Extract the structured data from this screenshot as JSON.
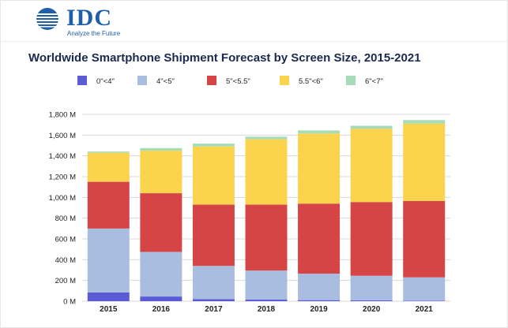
{
  "brand": {
    "logo_text": "IDC",
    "tagline": "Analyze the Future",
    "color": "#1f5ea8"
  },
  "chart_data": {
    "type": "bar",
    "stacked": true,
    "title": "Worldwide Smartphone Shipment Forecast by Screen Size, 2015-2021",
    "xlabel": "",
    "ylabel": "",
    "categories": [
      "2015",
      "2016",
      "2017",
      "2018",
      "2019",
      "2020",
      "2021"
    ],
    "ylim": [
      0,
      1800
    ],
    "y_ticks": [
      0,
      200,
      400,
      600,
      800,
      1000,
      1200,
      1400,
      1600,
      1800
    ],
    "y_tick_labels": [
      "0 M",
      "200 M",
      "400 M",
      "600 M",
      "800 M",
      "1,000 M",
      "1,200 M",
      "1,400 M",
      "1,600 M",
      "1,800 M"
    ],
    "grid": true,
    "legend_position": "top",
    "series": [
      {
        "name": "0\"<4\"",
        "color": "#5b5bd6",
        "values": [
          85,
          45,
          20,
          15,
          10,
          8,
          5
        ]
      },
      {
        "name": "4\"<5\"",
        "color": "#a9bde0",
        "values": [
          615,
          430,
          320,
          280,
          255,
          237,
          225
        ]
      },
      {
        "name": "5\"<5.5\"",
        "color": "#d64545",
        "values": [
          450,
          565,
          590,
          635,
          675,
          710,
          735
        ]
      },
      {
        "name": "5.5\"<6\"",
        "color": "#fcd34d",
        "values": [
          280,
          410,
          560,
          630,
          675,
          705,
          745
        ]
      },
      {
        "name": "6\"<7\"",
        "color": "#a8dcb8",
        "values": [
          12,
          25,
          28,
          25,
          30,
          30,
          35
        ]
      }
    ]
  }
}
